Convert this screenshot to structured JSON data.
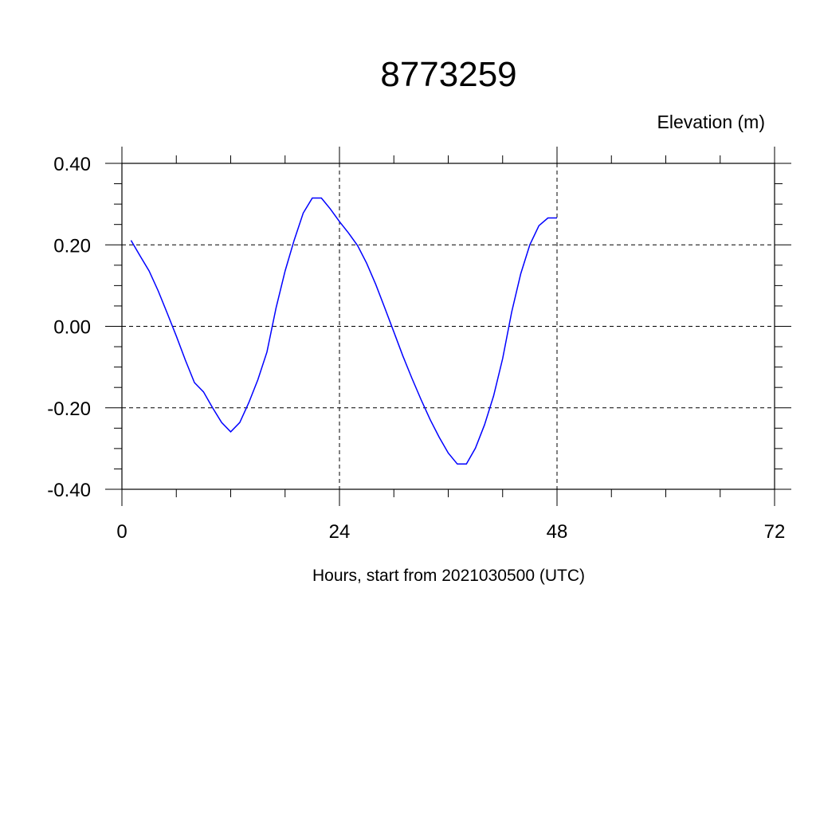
{
  "chart_data": {
    "type": "line",
    "title": "8773259",
    "ylabel": "Elevation (m)",
    "xlabel": "Hours, start from 2021030500 (UTC)",
    "xlim": [
      0,
      72
    ],
    "ylim": [
      -0.4,
      0.4
    ],
    "x_ticks": [
      0,
      24,
      48,
      72
    ],
    "x_tick_labels": [
      "0",
      "24",
      "48",
      "72"
    ],
    "y_ticks": [
      -0.4,
      -0.2,
      0.0,
      0.2,
      0.4
    ],
    "y_tick_labels": [
      "-0.40",
      "-0.20",
      "0.00",
      "0.20",
      "0.40"
    ],
    "grid": true,
    "line_color": "#0000ff",
    "x": [
      1,
      2,
      3,
      4,
      5,
      6,
      7,
      8,
      9,
      10,
      11,
      12,
      13,
      14,
      15,
      16,
      17,
      18,
      19,
      20,
      21,
      22,
      23,
      24,
      25,
      26,
      27,
      28,
      29,
      30,
      31,
      32,
      33,
      34,
      35,
      36,
      37,
      38,
      39,
      40,
      41,
      42,
      43,
      44,
      45,
      46,
      47,
      48
    ],
    "values": [
      0.211,
      0.173,
      0.136,
      0.087,
      0.032,
      -0.024,
      -0.083,
      -0.138,
      -0.161,
      -0.2,
      -0.236,
      -0.259,
      -0.236,
      -0.187,
      -0.131,
      -0.063,
      0.045,
      0.136,
      0.211,
      0.278,
      0.315,
      0.315,
      0.288,
      0.257,
      0.229,
      0.198,
      0.155,
      0.103,
      0.045,
      -0.014,
      -0.073,
      -0.128,
      -0.18,
      -0.229,
      -0.272,
      -0.311,
      -0.338,
      -0.338,
      -0.299,
      -0.242,
      -0.171,
      -0.079,
      0.035,
      0.129,
      0.2,
      0.247,
      0.266,
      0.266
    ]
  }
}
